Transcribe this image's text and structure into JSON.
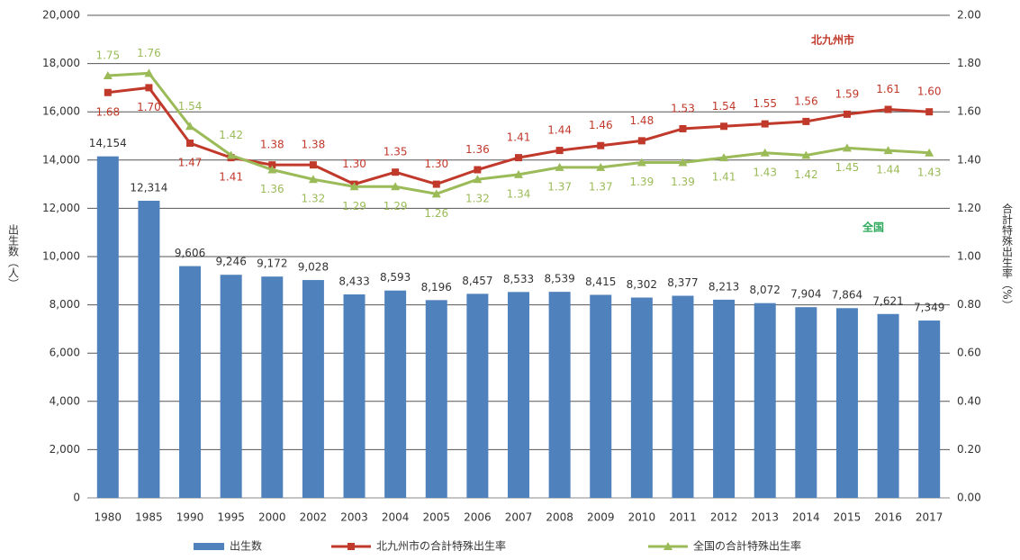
{
  "chart_data": {
    "type": "bar",
    "categories": [
      "1980",
      "1985",
      "1990",
      "1995",
      "2000",
      "2002",
      "2003",
      "2004",
      "2005",
      "2006",
      "2007",
      "2008",
      "2009",
      "2010",
      "2011",
      "2012",
      "2013",
      "2014",
      "2015",
      "2016",
      "2017"
    ],
    "series": [
      {
        "name": "出生数",
        "type": "bar",
        "color": "#4f81bd",
        "values": [
          14154,
          12314,
          9606,
          9246,
          9172,
          9028,
          8433,
          8593,
          8196,
          8457,
          8533,
          8539,
          8415,
          8302,
          8377,
          8213,
          8072,
          7904,
          7864,
          7621,
          7349
        ],
        "value_labels": [
          "14,154",
          "12,314",
          "9,606",
          "9,246",
          "9,172",
          "9,028",
          "8,433",
          "8,593",
          "8,196",
          "8,457",
          "8,533",
          "8,539",
          "8,415",
          "8,302",
          "8,377",
          "8,213",
          "8,072",
          "7,904",
          "7,864",
          "7,621",
          "7,349"
        ]
      },
      {
        "name": "北九州市の合計特殊出生率",
        "type": "line",
        "axis": "y2",
        "color": "#c0392b",
        "values": [
          1.68,
          1.7,
          1.47,
          1.41,
          1.38,
          1.38,
          1.3,
          1.35,
          1.3,
          1.36,
          1.41,
          1.44,
          1.46,
          1.48,
          1.53,
          1.54,
          1.55,
          1.56,
          1.59,
          1.61,
          1.6
        ],
        "value_labels": [
          "1.68",
          "1.70",
          "1.47",
          "1.41",
          "1.38",
          "1.38",
          "1.30",
          "1.35",
          "1.30",
          "1.36",
          "1.41",
          "1.44",
          "1.46",
          "1.48",
          "1.53",
          "1.54",
          "1.55",
          "1.56",
          "1.59",
          "1.61",
          "1.60"
        ]
      },
      {
        "name": "全国の合計特殊出生率",
        "type": "line",
        "axis": "y2",
        "color": "#9bbb59",
        "values": [
          1.75,
          1.76,
          1.54,
          1.42,
          1.36,
          1.32,
          1.29,
          1.29,
          1.26,
          1.32,
          1.34,
          1.37,
          1.37,
          1.39,
          1.39,
          1.41,
          1.43,
          1.42,
          1.45,
          1.44,
          1.43
        ],
        "value_labels": [
          "1.75",
          "1.76",
          "1.54",
          "1.42",
          "1.36",
          "1.32",
          "1.29",
          "1.29",
          "1.26",
          "1.32",
          "1.34",
          "1.37",
          "1.37",
          "1.39",
          "1.39",
          "1.41",
          "1.43",
          "1.42",
          "1.45",
          "1.44",
          "1.43"
        ]
      }
    ],
    "ylabel": "出生数（人）",
    "y2label": "合計特殊出生率（%）",
    "annotations": [
      {
        "text": "北九州市",
        "color": "#c0392b"
      },
      {
        "text": "全国",
        "color": "#2eaa5c"
      }
    ],
    "ylim": [
      0,
      20000
    ],
    "yticks": [
      0,
      {
        "value": 2000,
        "label": "2,000"
      },
      {
        "value": 4000,
        "label": "4,000"
      },
      {
        "value": 6000,
        "label": "6,000"
      },
      {
        "value": 8000,
        "label": "8,000"
      },
      {
        "value": 10000,
        "label": "10,000"
      },
      {
        "value": 12000,
        "label": "12,000"
      },
      {
        "value": 14000,
        "label": "14,000"
      },
      {
        "value": 16000,
        "label": "16,000"
      },
      {
        "value": 18000,
        "label": "18,000"
      },
      {
        "value": 20000,
        "label": "20,000"
      }
    ],
    "y2lim": [
      0,
      2
    ],
    "y2ticks": [
      {
        "value": 0,
        "label": "0.00"
      },
      {
        "value": 0.2,
        "label": "0.20"
      },
      {
        "value": 0.4,
        "label": "0.40"
      },
      {
        "value": 0.6,
        "label": "0.60"
      },
      {
        "value": 0.8,
        "label": "0.80"
      },
      {
        "value": 1,
        "label": "1.00"
      },
      {
        "value": 1.2,
        "label": "1.20"
      },
      {
        "value": 1.4,
        "label": "1.40"
      },
      {
        "value": 1.6,
        "label": "1.60"
      },
      {
        "value": 1.8,
        "label": "1.80"
      },
      {
        "value": 2,
        "label": "2.00"
      }
    ],
    "grid": true,
    "legend": "bottom"
  }
}
